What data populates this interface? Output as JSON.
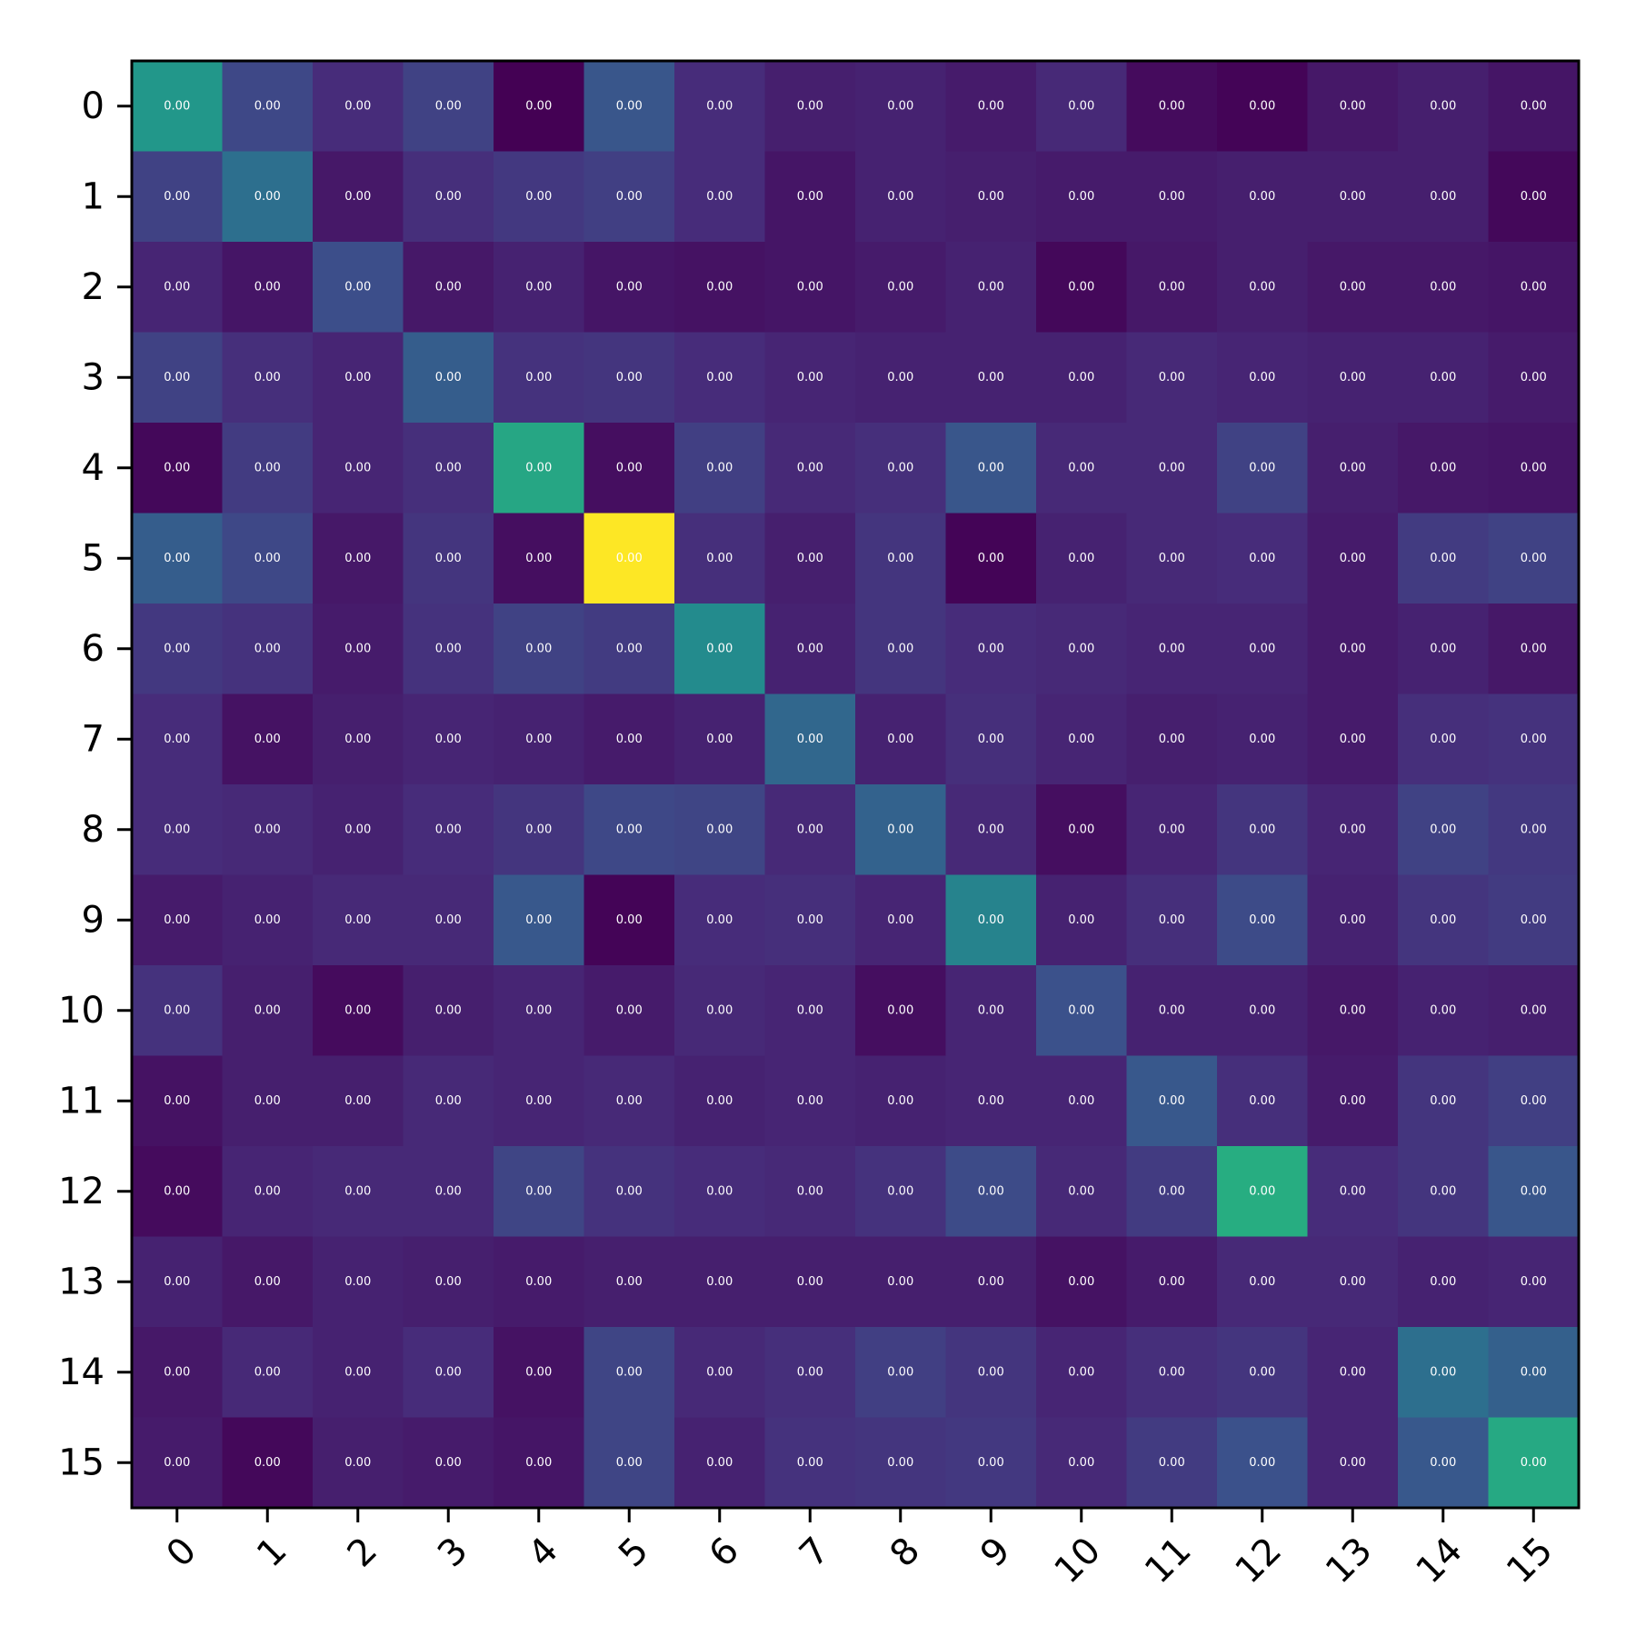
{
  "chart_data": {
    "type": "heatmap",
    "title": "",
    "xlabel": "",
    "ylabel": "",
    "x_categories": [
      "0",
      "1",
      "2",
      "3",
      "4",
      "5",
      "6",
      "7",
      "8",
      "9",
      "10",
      "11",
      "12",
      "13",
      "14",
      "15"
    ],
    "y_categories": [
      "0",
      "1",
      "2",
      "3",
      "4",
      "5",
      "6",
      "7",
      "8",
      "9",
      "10",
      "11",
      "12",
      "13",
      "14",
      "15"
    ],
    "cell_label_text": "0.00",
    "colormap": "viridis",
    "value_range": [
      0,
      1
    ],
    "grid": false,
    "legend": "none",
    "relative_intensity": [
      [
        0.53,
        0.22,
        0.13,
        0.2,
        0.0,
        0.27,
        0.13,
        0.09,
        0.1,
        0.08,
        0.12,
        0.03,
        0.01,
        0.07,
        0.09,
        0.06
      ],
      [
        0.2,
        0.37,
        0.07,
        0.14,
        0.17,
        0.19,
        0.13,
        0.06,
        0.1,
        0.09,
        0.08,
        0.08,
        0.09,
        0.09,
        0.09,
        0.02
      ],
      [
        0.11,
        0.06,
        0.24,
        0.07,
        0.1,
        0.06,
        0.05,
        0.06,
        0.08,
        0.1,
        0.02,
        0.07,
        0.09,
        0.07,
        0.07,
        0.06
      ],
      [
        0.2,
        0.14,
        0.11,
        0.3,
        0.15,
        0.16,
        0.13,
        0.11,
        0.1,
        0.1,
        0.1,
        0.12,
        0.11,
        0.1,
        0.1,
        0.08
      ],
      [
        0.02,
        0.18,
        0.11,
        0.14,
        0.6,
        0.04,
        0.19,
        0.12,
        0.14,
        0.27,
        0.12,
        0.12,
        0.2,
        0.09,
        0.07,
        0.06
      ],
      [
        0.3,
        0.22,
        0.07,
        0.16,
        0.04,
        1.0,
        0.14,
        0.09,
        0.16,
        0.01,
        0.1,
        0.12,
        0.13,
        0.08,
        0.18,
        0.2
      ],
      [
        0.17,
        0.15,
        0.08,
        0.15,
        0.2,
        0.18,
        0.48,
        0.1,
        0.16,
        0.13,
        0.12,
        0.11,
        0.11,
        0.08,
        0.1,
        0.07
      ],
      [
        0.13,
        0.05,
        0.09,
        0.11,
        0.1,
        0.08,
        0.1,
        0.34,
        0.1,
        0.14,
        0.11,
        0.09,
        0.1,
        0.08,
        0.14,
        0.15
      ],
      [
        0.13,
        0.12,
        0.1,
        0.13,
        0.16,
        0.22,
        0.21,
        0.12,
        0.32,
        0.12,
        0.04,
        0.11,
        0.16,
        0.11,
        0.2,
        0.17
      ],
      [
        0.08,
        0.1,
        0.12,
        0.12,
        0.28,
        0.01,
        0.13,
        0.14,
        0.11,
        0.45,
        0.1,
        0.14,
        0.23,
        0.1,
        0.16,
        0.18
      ],
      [
        0.15,
        0.09,
        0.03,
        0.09,
        0.11,
        0.08,
        0.12,
        0.11,
        0.04,
        0.11,
        0.25,
        0.1,
        0.1,
        0.07,
        0.1,
        0.09
      ],
      [
        0.05,
        0.09,
        0.09,
        0.12,
        0.11,
        0.12,
        0.1,
        0.11,
        0.1,
        0.11,
        0.11,
        0.28,
        0.14,
        0.08,
        0.16,
        0.19
      ],
      [
        0.03,
        0.11,
        0.12,
        0.12,
        0.21,
        0.15,
        0.13,
        0.12,
        0.15,
        0.23,
        0.12,
        0.18,
        0.63,
        0.13,
        0.16,
        0.27
      ],
      [
        0.1,
        0.07,
        0.1,
        0.09,
        0.08,
        0.09,
        0.09,
        0.09,
        0.09,
        0.09,
        0.05,
        0.08,
        0.12,
        0.12,
        0.1,
        0.11
      ],
      [
        0.07,
        0.12,
        0.1,
        0.13,
        0.05,
        0.21,
        0.12,
        0.14,
        0.19,
        0.16,
        0.11,
        0.14,
        0.16,
        0.11,
        0.37,
        0.31
      ],
      [
        0.08,
        0.02,
        0.09,
        0.08,
        0.06,
        0.21,
        0.1,
        0.15,
        0.16,
        0.17,
        0.12,
        0.18,
        0.25,
        0.11,
        0.28,
        0.61
      ]
    ]
  }
}
